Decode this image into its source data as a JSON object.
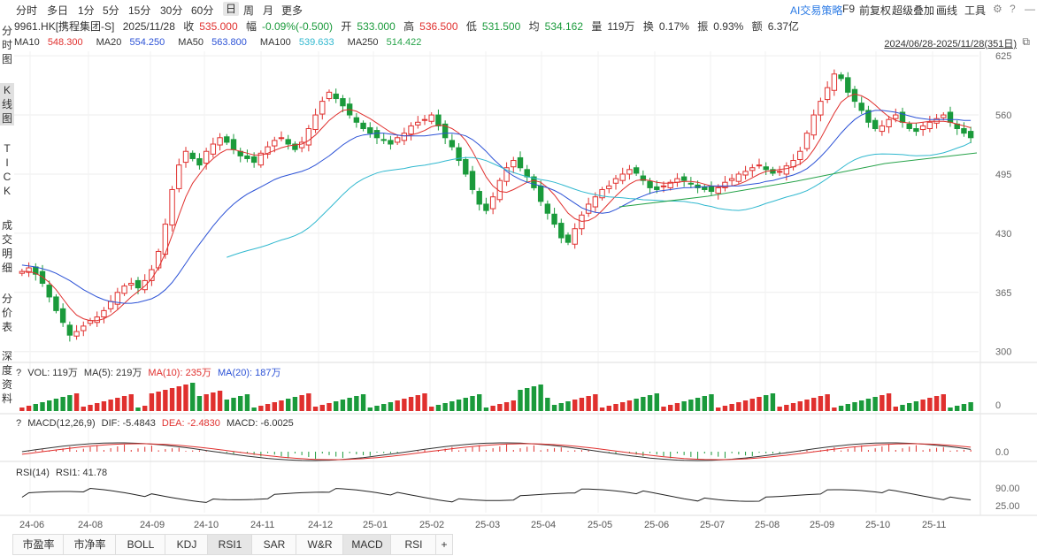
{
  "toolbar": {
    "periods": [
      "分时",
      "多日",
      "1分",
      "5分",
      "15分",
      "30分",
      "60分",
      "日",
      "周",
      "月",
      "更多"
    ],
    "active_period": "日",
    "ai_label": "AI交易策略",
    "f9": "F9",
    "adjust": "前复权",
    "overlay": "超级叠加",
    "draw": "画线",
    "tools": "工具"
  },
  "info": {
    "symbol": "9961.HK[携程集团-S]",
    "date": "2025/11/28",
    "close_label": "收",
    "close": "535.000",
    "change_label": "幅",
    "change": "-0.09%(-0.500)",
    "open_label": "开",
    "open": "533.000",
    "high_label": "高",
    "high": "536.500",
    "low_label": "低",
    "low": "531.500",
    "avg_label": "均",
    "avg": "534.162",
    "vol_label": "量",
    "vol": "119万",
    "turnover_label": "换",
    "turnover": "0.17%",
    "amplitude_label": "振",
    "amplitude": "0.93%",
    "amount_label": "额",
    "amount": "6.37亿"
  },
  "ma": {
    "ma10_label": "MA10",
    "ma10": "548.300",
    "ma20_label": "MA20",
    "ma20": "554.250",
    "ma50_label": "MA50",
    "ma50": "563.800",
    "ma100_label": "MA100",
    "ma100": "539.633",
    "ma250_label": "MA250",
    "ma250": "514.422"
  },
  "range": "2024/06/28-2025/11/28(351日)",
  "sidebar": [
    "分时图",
    "K线图",
    "TICK",
    "成交明细",
    "分价表",
    "深度资料"
  ],
  "volume": {
    "label": "VOL: 119万",
    "ma5": "MA(5): 219万",
    "ma10": "MA(10): 235万",
    "ma20": "MA(20): 187万",
    "axis": "0"
  },
  "macd": {
    "label": "MACD(12,26,9)",
    "dif": "DIF: -5.4843",
    "dea": "DEA: -2.4830",
    "macd": "MACD: -6.0025",
    "axis": "0.0"
  },
  "rsi": {
    "label": "RSI(14)",
    "rsi1": "RSI1: 41.78",
    "axis_top": "90.00",
    "axis_bottom": "25.00"
  },
  "price_axis": [
    "625",
    "560",
    "495",
    "430",
    "365",
    "300"
  ],
  "x_axis": [
    "24-06",
    "24-08",
    "24-09",
    "24-10",
    "24-11",
    "24-12",
    "25-01",
    "25-02",
    "25-03",
    "25-04",
    "25-05",
    "25-06",
    "25-07",
    "25-08",
    "25-09",
    "25-10",
    "25-11"
  ],
  "bottom_tabs": [
    "市盈率",
    "市净率",
    "BOLL",
    "KDJ",
    "RSI1",
    "SAR",
    "W&R",
    "MACD",
    "RSI",
    "+"
  ],
  "help_mark": "?",
  "colors": {
    "up": "#e0302e",
    "down": "#1a9a3b",
    "ma10": "#e0302e",
    "ma20": "#2c52d6",
    "ma50": "#2c52d6",
    "ma100": "#30b8cf",
    "ma250": "#27a34a"
  },
  "chart_data": {
    "type": "candlestick",
    "ylim": [
      290,
      630
    ],
    "close_series": [
      388,
      392,
      385,
      375,
      360,
      345,
      332,
      318,
      322,
      328,
      334,
      338,
      345,
      355,
      365,
      372,
      375,
      370,
      378,
      390,
      410,
      440,
      478,
      505,
      520,
      512,
      505,
      520,
      528,
      535,
      530,
      522,
      515,
      512,
      508,
      518,
      525,
      532,
      535,
      528,
      522,
      530,
      545,
      560,
      575,
      585,
      578,
      570,
      560,
      552,
      545,
      540,
      535,
      532,
      528,
      535,
      540,
      548,
      552,
      555,
      560,
      548,
      535,
      525,
      510,
      495,
      478,
      462,
      455,
      470,
      488,
      502,
      510,
      502,
      492,
      480,
      465,
      452,
      440,
      425,
      420,
      435,
      450,
      462,
      470,
      478,
      482,
      490,
      495,
      500,
      496,
      488,
      480,
      478,
      482,
      486,
      490,
      488,
      484,
      480,
      478,
      476,
      480,
      486,
      490,
      495,
      498,
      502,
      505,
      500,
      496,
      498,
      504,
      510,
      520,
      540,
      560,
      575,
      590,
      605,
      600,
      585,
      575,
      565,
      552,
      545,
      548,
      555,
      560,
      552,
      545,
      542,
      548,
      552,
      556,
      560,
      552,
      545,
      540,
      535
    ],
    "ma10": [
      388,
      388,
      386,
      382,
      376,
      368,
      358,
      348,
      340,
      336,
      334,
      334,
      336,
      340,
      346,
      353,
      360,
      366,
      372,
      380,
      392,
      408,
      428,
      450,
      470,
      485,
      495,
      505,
      512,
      518,
      522,
      522,
      520,
      518,
      516,
      516,
      518,
      521,
      524,
      526,
      527,
      528,
      532,
      538,
      546,
      554,
      560,
      565,
      566,
      564,
      560,
      556,
      551,
      546,
      541,
      538,
      537,
      538,
      540,
      543,
      547,
      549,
      548,
      545,
      540,
      532,
      520,
      506,
      492,
      482,
      476,
      475,
      478,
      482,
      486,
      488,
      486,
      480,
      472,
      462,
      452,
      446,
      443,
      444,
      448,
      455,
      463,
      471,
      478,
      484,
      488,
      489,
      488,
      486,
      485,
      485,
      486,
      487,
      487,
      486,
      484,
      482,
      481,
      481,
      482,
      484,
      487,
      491,
      495,
      498,
      499,
      500,
      501,
      503,
      506,
      512,
      522,
      534,
      548,
      562,
      574,
      580,
      583,
      581,
      577,
      571,
      564,
      558,
      554,
      552,
      551,
      551,
      552,
      553,
      553,
      553,
      552,
      550,
      548,
      546
    ],
    "ma20": [
      395,
      394,
      393,
      391,
      389,
      386,
      382,
      378,
      373,
      368,
      364,
      360,
      357,
      355,
      354,
      353,
      353,
      354,
      356,
      358,
      362,
      368,
      376,
      386,
      397,
      408,
      418,
      428,
      438,
      447,
      455,
      462,
      468,
      473,
      477,
      481,
      485,
      489,
      492,
      494,
      496,
      498,
      501,
      505,
      510,
      515,
      521,
      527,
      532,
      536,
      538,
      539,
      540,
      540,
      539,
      538,
      537,
      537,
      537,
      537,
      538,
      539,
      540,
      540,
      539,
      537,
      533,
      527,
      520,
      512,
      505,
      498,
      493,
      489,
      486,
      484,
      482,
      480,
      477,
      473,
      468,
      463,
      458,
      455,
      453,
      452,
      453,
      456,
      460,
      464,
      468,
      471,
      474,
      476,
      477,
      478,
      479,
      480,
      480,
      481,
      481,
      482,
      482,
      482,
      482,
      482,
      483,
      484,
      485,
      487,
      488,
      490,
      492,
      494,
      497,
      501,
      507,
      514,
      522,
      531,
      540,
      548,
      555,
      560,
      563,
      565,
      565,
      564,
      563,
      561,
      559,
      557,
      556,
      555,
      555,
      555,
      555,
      555,
      554,
      554
    ]
  }
}
